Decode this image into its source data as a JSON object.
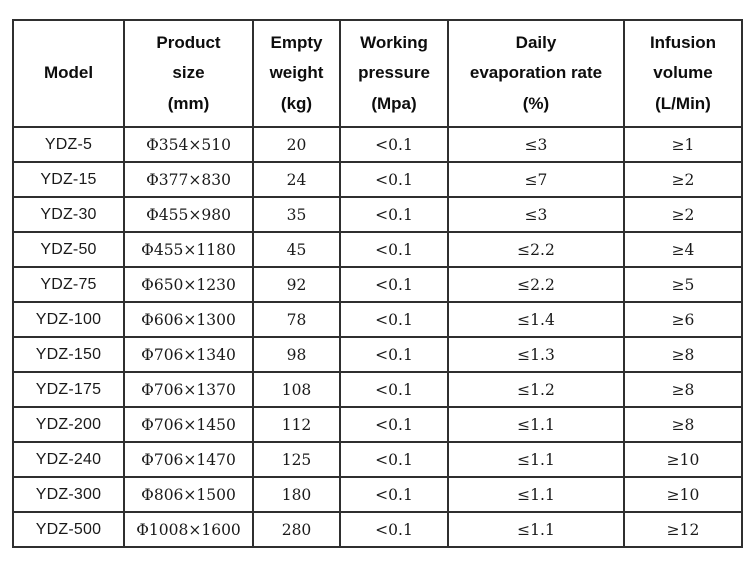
{
  "page": {
    "background_color": "#ffffff",
    "border_color": "#2f2f2f",
    "text_color": "#111111"
  },
  "table": {
    "headers": [
      "Model",
      "Product\nsize\n(mm)",
      "Empty\nweight\n(kg)",
      "Working\npressure\n(Mpa)",
      "Daily\nevaporation rate\n(%)",
      "Infusion\nvolume\n(L/Min)"
    ],
    "rows": [
      [
        "YDZ-5",
        "Φ354×510",
        "20",
        "<0.1",
        "≤3",
        "≥1"
      ],
      [
        "YDZ-15",
        "Φ377×830",
        "24",
        "<0.1",
        "≤7",
        "≥2"
      ],
      [
        "YDZ-30",
        "Φ455×980",
        "35",
        "<0.1",
        "≤3",
        "≥2"
      ],
      [
        "YDZ-50",
        "Φ455×1180",
        "45",
        "<0.1",
        "≤2.2",
        "≥4"
      ],
      [
        "YDZ-75",
        "Φ650×1230",
        "92",
        "<0.1",
        "≤2.2",
        "≥5"
      ],
      [
        "YDZ-100",
        "Φ606×1300",
        "78",
        "<0.1",
        "≤1.4",
        "≥6"
      ],
      [
        "YDZ-150",
        "Φ706×1340",
        "98",
        "<0.1",
        "≤1.3",
        "≥8"
      ],
      [
        "YDZ-175",
        "Φ706×1370",
        "108",
        "<0.1",
        "≤1.2",
        "≥8"
      ],
      [
        "YDZ-200",
        "Φ706×1450",
        "112",
        "<0.1",
        "≤1.1",
        "≥8"
      ],
      [
        "YDZ-240",
        "Φ706×1470",
        "125",
        "<0.1",
        "≤1.1",
        "≥10"
      ],
      [
        "YDZ-300",
        "Φ806×1500",
        "180",
        "<0.1",
        "≤1.1",
        "≥10"
      ],
      [
        "YDZ-500",
        "Φ1008×1600",
        "280",
        "<0.1",
        "≤1.1",
        "≥12"
      ]
    ]
  }
}
